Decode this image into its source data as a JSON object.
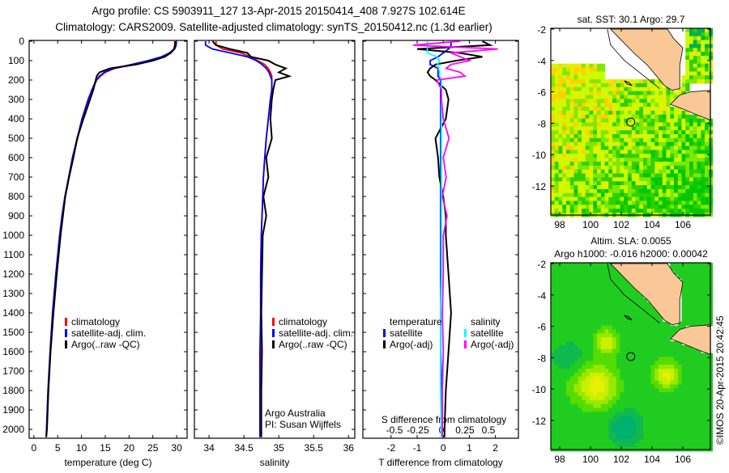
{
  "header": {
    "line1": "Argo profile: CS 5903911_127 13-Apr-2015 20150414_408 7.927S 102.614E",
    "line2": "Climatology: CARS2009. Satellite-adjusted climatology: synTS_20150412.nc (1.3d earlier)"
  },
  "credit": "©IMOS 20-Apr-2015 20:42:45",
  "chart_data": [
    {
      "type": "line",
      "id": "temperature",
      "xlabel": "temperature (deg C)",
      "ylabel": "depth",
      "xlim": [
        -1,
        32.2
      ],
      "ylim": [
        2045,
        0
      ],
      "xticks": [
        0,
        5,
        10,
        15,
        20,
        25,
        30
      ],
      "yticks": [
        0,
        100,
        200,
        300,
        400,
        500,
        600,
        700,
        800,
        900,
        1000,
        1100,
        1200,
        1300,
        1400,
        1500,
        1600,
        1700,
        1800,
        1900,
        2000
      ],
      "depth": [
        0,
        20,
        40,
        60,
        80,
        100,
        120,
        140,
        160,
        180,
        200,
        250,
        300,
        400,
        500,
        600,
        700,
        800,
        900,
        1000,
        1200,
        1400,
        1600,
        1800,
        2000,
        2040
      ],
      "legend": [
        "climatology",
        "satellite-adj. clim.",
        "Argo(..raw -QC)"
      ],
      "series": [
        {
          "name": "climatology",
          "color": "#ff0000",
          "values": [
            29.6,
            29.6,
            29.4,
            28.5,
            27,
            24.5,
            21,
            17,
            15,
            14,
            13.2,
            12.3,
            11.5,
            10.2,
            9.2,
            8.2,
            7.4,
            6.6,
            6,
            5.5,
            4.7,
            4,
            3.5,
            3,
            2.7,
            2.6
          ]
        },
        {
          "name": "satellite-adj. clim.",
          "color": "#0000ff",
          "values": [
            29.9,
            29.9,
            29.6,
            28.5,
            26.8,
            24,
            20.5,
            16.8,
            14.8,
            13.8,
            13.1,
            12.2,
            11.4,
            10.1,
            9.1,
            8.1,
            7.3,
            6.5,
            5.9,
            5.4,
            4.6,
            3.9,
            3.4,
            2.95,
            2.65,
            2.55
          ]
        },
        {
          "name": "Argo(..raw -QC)",
          "color": "#000000",
          "values": [
            29.7,
            29.7,
            29.5,
            28.8,
            27.5,
            25,
            21.5,
            16,
            13.8,
            13.2,
            13,
            12.5,
            11.8,
            10.4,
            9.1,
            8.3,
            7.4,
            6.6,
            6.1,
            5.6,
            4.8,
            4.1,
            3.5,
            3.05,
            2.75,
            2.6
          ]
        }
      ]
    },
    {
      "type": "line",
      "id": "salinity",
      "xlabel": "salinity",
      "xlim": [
        33.79,
        36.09
      ],
      "ylim": [
        2045,
        0
      ],
      "xticks": [
        34,
        34.5,
        35,
        35.5,
        36
      ],
      "legend": [
        "climatology",
        "satellite-adj. clim.",
        "Argo(..raw -QC)"
      ],
      "annotation": [
        "Argo Australia",
        "PI: Susan Wijffels"
      ],
      "series": [
        {
          "name": "climatology",
          "color": "#ff0000",
          "values": [
            34.1,
            34.1,
            34.2,
            34.45,
            34.6,
            34.7,
            34.8,
            34.85,
            34.88,
            34.9,
            34.9,
            34.9,
            34.88,
            34.85,
            34.82,
            34.8,
            34.78,
            34.77,
            34.76,
            34.75,
            34.74,
            34.74,
            34.74,
            34.74,
            34.74,
            34.74
          ]
        },
        {
          "name": "satellite-adj. clim.",
          "color": "#0000ff",
          "values": [
            33.95,
            33.95,
            34.05,
            34.3,
            34.55,
            34.68,
            34.76,
            34.82,
            34.86,
            34.88,
            34.9,
            34.9,
            34.88,
            34.85,
            34.82,
            34.8,
            34.78,
            34.77,
            34.76,
            34.75,
            34.74,
            34.74,
            34.73,
            34.73,
            34.73,
            34.73
          ]
        },
        {
          "name": "Argo(..raw -QC)",
          "color": "#000000",
          "values": [
            34.05,
            34.1,
            34.3,
            34.55,
            34.6,
            34.85,
            34.95,
            35.1,
            35.0,
            35.15,
            34.95,
            34.92,
            34.9,
            34.88,
            34.9,
            34.82,
            34.85,
            34.78,
            34.82,
            34.77,
            34.76,
            34.75,
            34.76,
            34.75,
            34.75,
            34.75
          ]
        }
      ]
    },
    {
      "type": "line",
      "id": "differences",
      "xlabel": "T difference from climatology",
      "xlabel_top": "S difference from climatology",
      "xlim": [
        -3.08,
        2.88
      ],
      "xlim_s": [
        -0.836,
        0.819
      ],
      "xticks": [
        -2,
        -1,
        0,
        1,
        2
      ],
      "xticks_s": [
        -0.5,
        -0.25,
        0,
        0.25,
        0.5
      ],
      "legend_t_title": "temperature",
      "legend_s_title": "salinity",
      "legend": [
        "satellite",
        "Argo(-adj)",
        "satellite",
        "Argo(-adj)"
      ],
      "series": [
        {
          "name": "T satellite",
          "axis": "T",
          "color": "#0000ff",
          "values": [
            0.3,
            0.3,
            0.2,
            0,
            -0.2,
            -0.5,
            -0.5,
            -0.2,
            -0.2,
            -0.2,
            -0.1,
            -0.1,
            -0.1,
            -0.1,
            -0.1,
            -0.1,
            -0.1,
            -0.1,
            -0.1,
            -0.1,
            -0.1,
            -0.1,
            -0.1,
            -0.05,
            -0.05,
            -0.05
          ]
        },
        {
          "name": "T Argo(-adj)",
          "axis": "T",
          "color": "#000000",
          "values": [
            1.5,
            1.8,
            -1,
            0.6,
            1.5,
            0.5,
            -0.3,
            -0.5,
            -0.6,
            -0.5,
            -0.3,
            0.1,
            0.2,
            0.1,
            -0.3,
            -0.2,
            -0.15,
            0,
            0.1,
            0.1,
            0.2,
            0.3,
            0.2,
            0.1,
            0.05,
            0.05
          ]
        },
        {
          "name": "S satellite",
          "axis": "S",
          "color": "#00ffff",
          "values": [
            -0.15,
            -0.15,
            -0.15,
            -0.15,
            -0.05,
            -0.02,
            -0.04,
            -0.03,
            -0.02,
            -0.02,
            0,
            0,
            0,
            0,
            0,
            0,
            0,
            0,
            0,
            0,
            0,
            -0.01,
            -0.01,
            -0.01,
            0,
            0
          ]
        },
        {
          "name": "S Argo(-adj)",
          "axis": "S",
          "color": "#ff00ff",
          "values": [
            0.2,
            -0.3,
            0.6,
            0.1,
            0.2,
            0.3,
            0.1,
            0.05,
            0.2,
            0.25,
            -0.05,
            0,
            0,
            0.02,
            0.08,
            0.02,
            0.05,
            0.01,
            0.06,
            0.02,
            0.02,
            0.01,
            0.02,
            0.01,
            0.01,
            0.01
          ]
        }
      ]
    }
  ],
  "maps": {
    "argo_position": {
      "lon": 102.614,
      "lat": -7.927
    },
    "lon_ticks": [
      98,
      100,
      102,
      104,
      106
    ],
    "lat_ticks": [
      -2,
      -4,
      -6,
      -8,
      -10,
      -12
    ],
    "sst": {
      "title": "sat. SST: 30.1 Argo: 29.7"
    },
    "sla": {
      "title1": "Altim. SLA: 0.0055",
      "title2": "Argo h1000: -0.016 h2000: 0.00042"
    }
  }
}
